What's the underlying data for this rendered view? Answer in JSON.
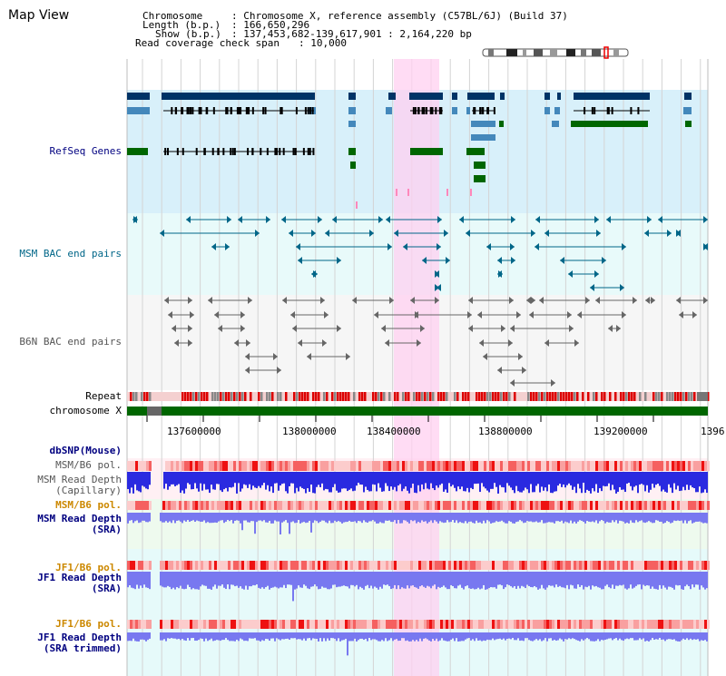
{
  "view": {
    "title": "Map View"
  },
  "info": {
    "chromosome_key": "Chromosome",
    "chromosome_value": ": Chromosome X, reference assembly (C57BL/6J) (Build 37)",
    "length_key": "Length (b.p.)",
    "length_value": ": 166,650,296",
    "show_key": "Show (b.p.)",
    "show_value": ": 137,453,682-139,617,901 : 2,164,220 bp",
    "coverage_key": "Read coverage check span",
    "coverage_value": ": 10,000"
  },
  "tracks": {
    "refseq": "RefSeq Genes",
    "msm_bac": "MSM BAC end pairs",
    "b6n_bac": "B6N BAC end pairs",
    "repeat": "Repeat",
    "chromosome": "chromosome X",
    "dbsnp": "dbSNP(Mouse)",
    "msm_b6_pol_1": "MSM/B6 pol.",
    "msm_depth_cap_1": "MSM Read Depth",
    "msm_depth_cap_2": "(Capillary)",
    "msm_b6_pol_2": "MSM/B6 pol.",
    "msm_depth_sra_1": "MSM Read Depth",
    "msm_depth_sra_2": "(SRA)",
    "jf1_b6_pol_1": "JF1/B6 pol.",
    "jf1_depth_sra_1": "JF1 Read Depth",
    "jf1_depth_sra_2": "(SRA)",
    "jf1_b6_pol_2": "JF1/B6 pol.",
    "jf1_depth_trim_1": "JF1 Read Depth",
    "jf1_depth_trim_2": "(SRA trimmed)"
  },
  "axis": {
    "ticks": [
      "137600000",
      "138000000",
      "138400000",
      "138800000",
      "139200000",
      "1396"
    ]
  },
  "colors": {
    "navy": "#003366",
    "refseq_bg": "#d8f0fa",
    "bac_bg": "#e8fafa",
    "b6n_bg": "#f6f6f6",
    "highlight": "#ffd0f0",
    "gene_green": "#006600",
    "teal": "#006688",
    "label_navy": "#000080",
    "label_orange": "#cc8800",
    "depth_blue": "#2a2ae0",
    "depth_light": "#7878f0",
    "repeat_red": "#dd0000"
  }
}
